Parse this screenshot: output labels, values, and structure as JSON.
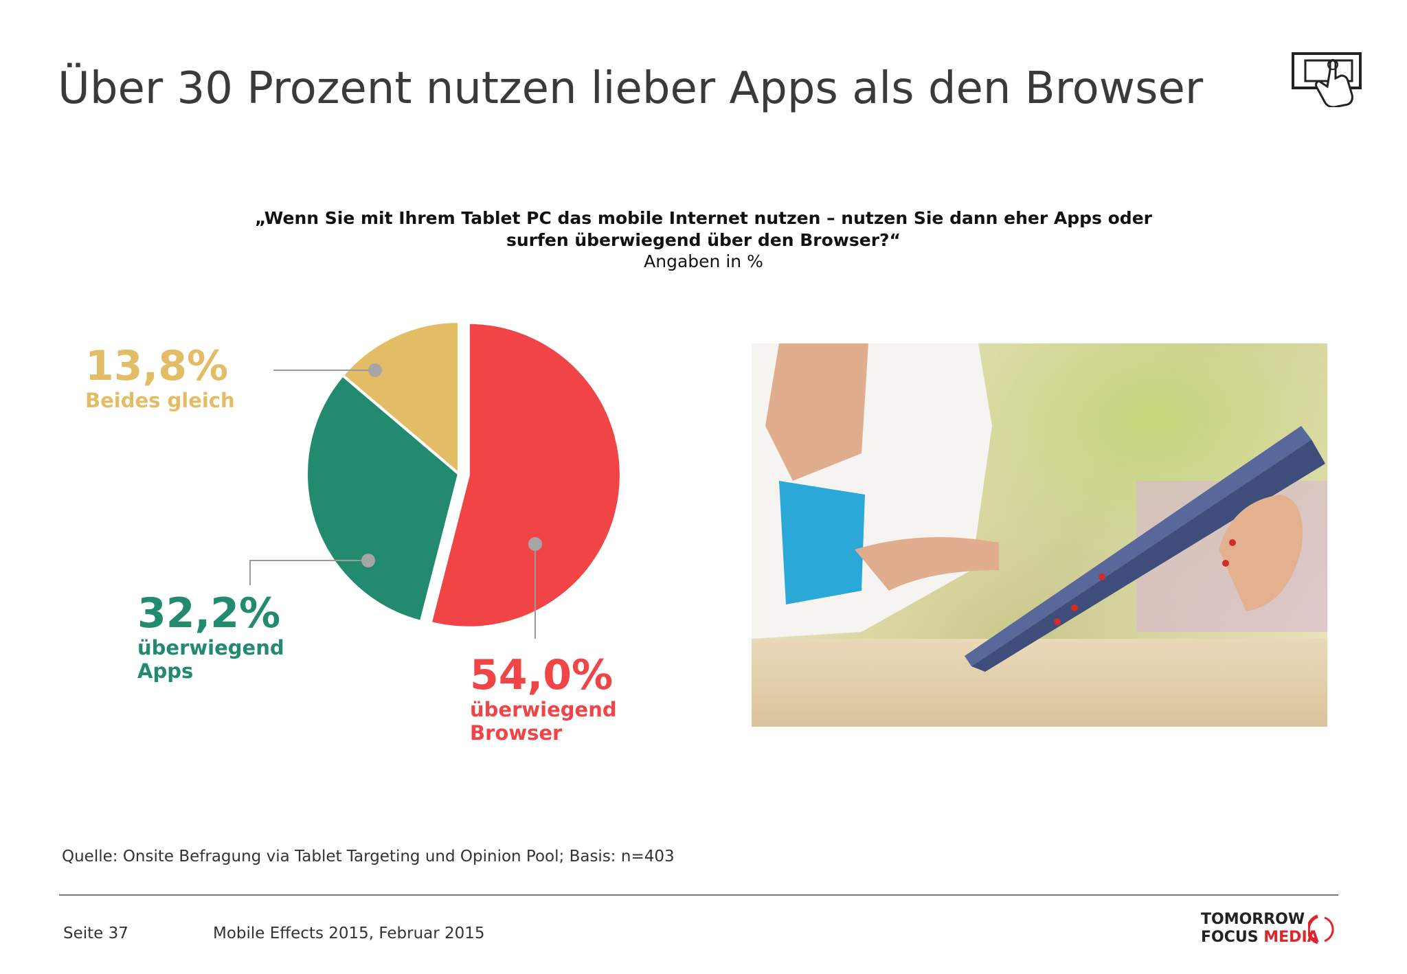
{
  "title": "Über 30 Prozent nutzen lieber Apps als den Browser",
  "question": {
    "line1": "„Wenn Sie mit Ihrem Tablet PC das mobile Internet nutzen – nutzen Sie dann eher Apps oder",
    "line2": "surfen überwiegend über den Browser?“",
    "note": "Angaben in %"
  },
  "chart_data": {
    "type": "pie",
    "slices": [
      {
        "label_pct": "54,0%",
        "label_line1": "überwiegend",
        "label_line2": "Browser",
        "value": 54.0,
        "color": "#f04447"
      },
      {
        "label_pct": "32,2%",
        "label_line1": "überwiegend",
        "label_line2": "Apps",
        "value": 32.2,
        "color": "#228a6e"
      },
      {
        "label_pct": "13,8%",
        "label_line1": "Beides gleich",
        "label_line2": "",
        "value": 13.8,
        "color": "#e3bd66"
      }
    ],
    "legend": "none"
  },
  "source": "Quelle: Onsite Befragung via Tablet Targeting und Opinion Pool; Basis: n=403",
  "footer": {
    "page": "Seite 37",
    "publication": "Mobile Effects 2015, Februar 2015",
    "logo_line1": "TOMORROW",
    "logo_line2a": "FOCUS",
    "logo_line2b": "MEDIA"
  },
  "icons": {
    "header": "tablet-touch-icon",
    "logo_mark": "brand-arc-icon"
  }
}
